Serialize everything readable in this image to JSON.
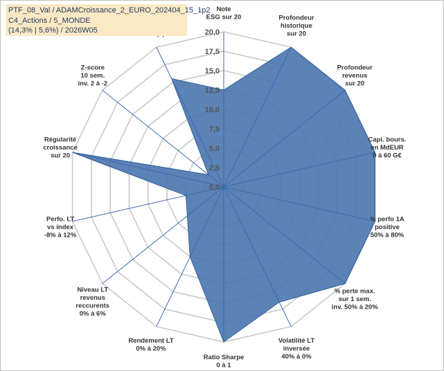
{
  "info_box": {
    "line1": "PTF_08_Val / ADAMCroissance_2_EURO_202404_15_1p2",
    "line2": "C4_Actions / 5_MONDE",
    "line3": "(14,3% | 5,6%) / 2026W05"
  },
  "chart_data": {
    "type": "radar",
    "title": "",
    "rmin": 0,
    "rmax": 20,
    "ticks": [
      "0,0",
      "2,5",
      "5,0",
      "7,5",
      "10,0",
      "12,5",
      "15,0",
      "17,5",
      "20,0"
    ],
    "tick_values": [
      0,
      2.5,
      5,
      7.5,
      10,
      12.5,
      15,
      17.5,
      20
    ],
    "fill_color": "#4a76ae",
    "line_color": "#2e5d9a",
    "highlight_color": "#c09a5a",
    "axes": [
      {
        "lines": [
          "Note",
          "ESG sur 20"
        ],
        "value": 12.5
      },
      {
        "lines": [
          "Profondeur",
          "historique",
          "sur 20"
        ],
        "value": 20
      },
      {
        "lines": [
          "Profondeur",
          "revenus",
          "sur 20"
        ],
        "value": 20
      },
      {
        "lines": [
          "Capi. bours.",
          "en MdEUR",
          "0 à 60 G€"
        ],
        "value": 20
      },
      {
        "lines": [
          "% perfo 1A",
          "positive",
          "50% à 80%"
        ],
        "value": 20
      },
      {
        "lines": [
          "% perte max.",
          "sur 1 sem.",
          "inv. 50% à 20%"
        ],
        "value": 20
      },
      {
        "lines": [
          "Volatilité LT",
          "inversée",
          "40% à 0%"
        ],
        "value": 16.5
      },
      {
        "lines": [
          "Ratio Sharpe",
          "0 à 1"
        ],
        "value": 20
      },
      {
        "lines": [
          "Rendement LT",
          "0% à 20%"
        ],
        "value": 10
      },
      {
        "lines": [
          "Niveau LT",
          "revenus",
          "reccurents",
          "0% à 6%"
        ],
        "value": 6
      },
      {
        "lines": [
          "Perfo. LT",
          "vs index",
          "-8% à 12%"
        ],
        "value": 5
      },
      {
        "lines": [
          "Régularité",
          "croissance",
          "sur 20"
        ],
        "value": 20
      },
      {
        "lines": [
          "Z-score",
          "10 sem.",
          "inv. 2 à -2"
        ],
        "value": 2.5
      },
      {
        "lines": [
          "Momentum",
          "Achat (20) /",
          "Vente (0)"
        ],
        "value": 15.5,
        "highlight_first_line": true
      }
    ]
  }
}
